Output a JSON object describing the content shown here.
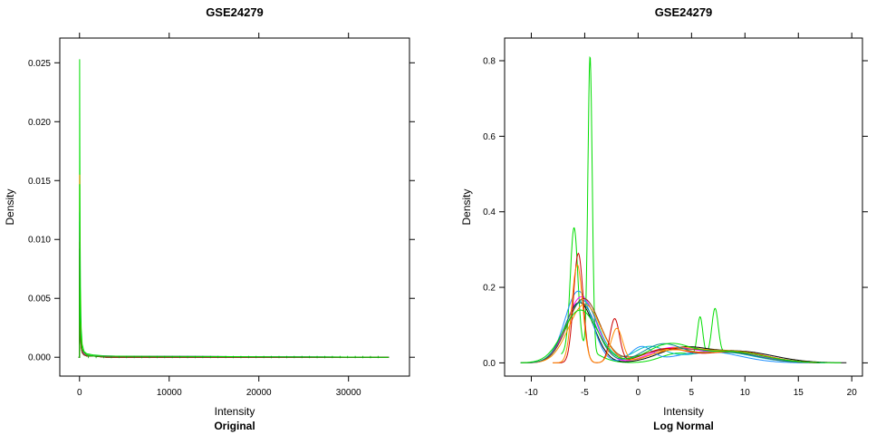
{
  "chart_data": [
    {
      "type": "line",
      "title": "GSE24279",
      "subtitle": "Original",
      "xlabel": "Intensity",
      "ylabel": "Density",
      "xlim": [
        -2200,
        36800
      ],
      "ylim": [
        -0.0016,
        0.0271
      ],
      "x_ticks": [
        0,
        10000,
        20000,
        30000
      ],
      "x_tick_labels": [
        "0",
        "10000",
        "20000",
        "30000"
      ],
      "y_ticks": [
        0.0,
        0.005,
        0.01,
        0.015,
        0.02,
        0.025
      ],
      "y_tick_labels": [
        "0.000",
        "0.005",
        "0.010",
        "0.015",
        "0.020",
        "0.025"
      ],
      "grid": false,
      "series": [
        {
          "color": "#00dd00",
          "peak": 0.0253,
          "x": [
            -100,
            0,
            10,
            30,
            60,
            100,
            180,
            300,
            500,
            800,
            1500,
            3000,
            34500
          ],
          "y": [
            0.0,
            0.0,
            0.0253,
            0.018,
            0.011,
            0.006,
            0.0025,
            0.0011,
            0.0005,
            0.0003,
            0.0002,
            0.0001,
            0.0
          ]
        },
        {
          "color": "#ff8c00",
          "peak": 0.0155,
          "x": [
            -100,
            0,
            10,
            30,
            60,
            100,
            180,
            300,
            500,
            800,
            1500,
            3000,
            34500
          ],
          "y": [
            0.0,
            0.0,
            0.0155,
            0.011,
            0.0065,
            0.0035,
            0.0015,
            0.0007,
            0.0004,
            0.0002,
            0.0001,
            0.0001,
            0.0
          ]
        },
        {
          "color": "#1e90ff",
          "peak": 0.0123,
          "x": [
            -100,
            0,
            10,
            30,
            60,
            100,
            180,
            300,
            500,
            800,
            1500,
            3000,
            34500
          ],
          "y": [
            0.0,
            0.0,
            0.0123,
            0.0085,
            0.005,
            0.0028,
            0.0012,
            0.0006,
            0.0003,
            0.0002,
            0.0001,
            0.0001,
            0.0
          ]
        },
        {
          "color": "#00c0c0",
          "peak": 0.0115,
          "x": [
            -100,
            0,
            10,
            30,
            60,
            100,
            180,
            300,
            500,
            800,
            1500,
            3000,
            34500
          ],
          "y": [
            0.0,
            0.0,
            0.0115,
            0.008,
            0.0047,
            0.0026,
            0.0011,
            0.0005,
            0.0003,
            0.0002,
            0.0001,
            0.0001,
            0.0
          ]
        },
        {
          "color": "#ff00ff",
          "peak": 0.0107,
          "x": [
            -100,
            0,
            10,
            30,
            60,
            100,
            180,
            300,
            500,
            800,
            1500,
            3000,
            34500
          ],
          "y": [
            0.0,
            0.0,
            0.0107,
            0.0074,
            0.0044,
            0.0024,
            0.001,
            0.0005,
            0.0003,
            0.0002,
            0.0001,
            0.0001,
            0.0
          ]
        },
        {
          "color": "#cc0000",
          "peak": 0.0098,
          "x": [
            -100,
            0,
            10,
            30,
            60,
            100,
            180,
            300,
            500,
            800,
            1500,
            3000,
            34500
          ],
          "y": [
            0.0,
            0.0,
            0.0098,
            0.0068,
            0.004,
            0.0022,
            0.0009,
            0.0004,
            0.0002,
            0.0001,
            0.0001,
            0.0,
            0.0
          ]
        },
        {
          "color": "#000000",
          "peak": 0.0092,
          "x": [
            -100,
            0,
            10,
            30,
            60,
            100,
            180,
            300,
            500,
            800,
            1500,
            3000,
            34500
          ],
          "y": [
            0.0,
            0.0,
            0.0092,
            0.0064,
            0.0038,
            0.0021,
            0.0009,
            0.0004,
            0.0002,
            0.0001,
            0.0001,
            0.0,
            0.0
          ]
        },
        {
          "color": "#8b4513",
          "peak": 0.0085,
          "x": [
            -100,
            0,
            10,
            30,
            60,
            100,
            180,
            300,
            500,
            800,
            1500,
            3000,
            34500
          ],
          "y": [
            0.0,
            0.0,
            0.0085,
            0.0059,
            0.0035,
            0.0019,
            0.0008,
            0.0004,
            0.0002,
            0.0001,
            0.0001,
            0.0,
            0.0
          ]
        },
        {
          "color": "#00dd00",
          "peak": 0.0147,
          "x": [
            -100,
            0,
            10,
            30,
            60,
            100,
            180,
            300,
            500,
            800,
            1500,
            3000,
            34500
          ],
          "y": [
            0.0,
            0.0,
            0.0147,
            0.01,
            0.006,
            0.0033,
            0.0014,
            0.0007,
            0.0004,
            0.0002,
            0.0001,
            0.0001,
            0.0
          ]
        }
      ]
    },
    {
      "type": "line",
      "title": "GSE24279",
      "subtitle": "Log Normal",
      "xlabel": "Intensity",
      "ylabel": "Density",
      "xlim": [
        -12.5,
        21.0
      ],
      "ylim": [
        -0.035,
        0.86
      ],
      "x_ticks": [
        -10,
        -5,
        0,
        5,
        10,
        15,
        20
      ],
      "x_tick_labels": [
        "-10",
        "-5",
        "0",
        "5",
        "10",
        "15",
        "20"
      ],
      "y_ticks": [
        0.0,
        0.2,
        0.4,
        0.6,
        0.8
      ],
      "y_tick_labels": [
        "0.0",
        "0.2",
        "0.4",
        "0.6",
        "0.8"
      ],
      "grid": false,
      "series": [
        {
          "color": "#00dd00",
          "components": [
            [
              0.32,
              -6.0,
              0.35
            ],
            [
              0.78,
              -4.5,
              0.2
            ],
            [
              0.04,
              -5.5,
              1.6
            ],
            [
              0.1,
              5.8,
              0.25
            ],
            [
              0.12,
              7.2,
              0.3
            ],
            [
              0.02,
              3.5,
              1.5
            ],
            [
              0.028,
              9.0,
              3.0
            ]
          ],
          "range": [
            -7.2,
            15.5
          ]
        },
        {
          "color": "#000000",
          "components": [
            [
              0.16,
              -5.5,
              1.35
            ],
            [
              0.035,
              4.0,
              2.2
            ],
            [
              0.03,
              9.5,
              3.2
            ]
          ],
          "range": [
            -11.0,
            19.5
          ]
        },
        {
          "color": "#1e90ff",
          "components": [
            [
              0.19,
              -5.6,
              1.25
            ],
            [
              0.04,
              0.3,
              1.0
            ],
            [
              0.03,
              6.5,
              3.0
            ]
          ],
          "range": [
            -11.0,
            17.5
          ]
        },
        {
          "color": "#ff00ff",
          "components": [
            [
              0.175,
              -5.3,
              1.4
            ],
            [
              0.035,
              3.0,
              2.0
            ],
            [
              0.03,
              8.5,
              3.0
            ]
          ],
          "range": [
            -11.0,
            17.0
          ]
        },
        {
          "color": "#00c0c0",
          "components": [
            [
              0.165,
              -5.2,
              1.45
            ],
            [
              0.04,
              1.0,
              1.5
            ],
            [
              0.03,
              7.5,
              3.2
            ]
          ],
          "range": [
            -11.0,
            17.0
          ]
        },
        {
          "color": "#8b4513",
          "components": [
            [
              0.17,
              -5.1,
              1.5
            ],
            [
              0.03,
              2.5,
              2.5
            ],
            [
              0.03,
              8.0,
              3.0
            ]
          ],
          "range": [
            -11.0,
            17.0
          ]
        },
        {
          "color": "#ff8c00",
          "components": [
            [
              0.155,
              -5.0,
              1.5
            ],
            [
              0.035,
              3.5,
              2.2
            ],
            [
              0.03,
              9.0,
              3.0
            ]
          ],
          "range": [
            -11.0,
            17.0
          ]
        },
        {
          "color": "#008b8b",
          "components": [
            [
              0.16,
              -5.4,
              1.45
            ],
            [
              0.045,
              2.2,
              1.8
            ],
            [
              0.028,
              8.0,
              3.2
            ]
          ],
          "range": [
            -11.0,
            17.0
          ]
        },
        {
          "color": "#cc0000",
          "components": [
            [
              0.29,
              -5.6,
              0.45
            ],
            [
              0.115,
              -2.2,
              0.45
            ],
            [
              0.035,
              2.5,
              2.0
            ],
            [
              0.03,
              9.0,
              3.0
            ]
          ],
          "range": [
            -8.0,
            17.0
          ]
        },
        {
          "color": "#ff8c00",
          "components": [
            [
              0.26,
              -5.7,
              0.5
            ],
            [
              0.09,
              -2.0,
              0.55
            ],
            [
              0.03,
              3.0,
              2.0
            ],
            [
              0.03,
              9.0,
              3.0
            ]
          ],
          "range": [
            -8.0,
            17.0
          ]
        },
        {
          "color": "#00dd00",
          "components": [
            [
              0.14,
              -5.4,
              1.6
            ],
            [
              0.045,
              2.8,
              2.0
            ],
            [
              0.03,
              8.5,
              3.2
            ]
          ],
          "range": [
            -11.0,
            19.0
          ]
        }
      ]
    }
  ]
}
